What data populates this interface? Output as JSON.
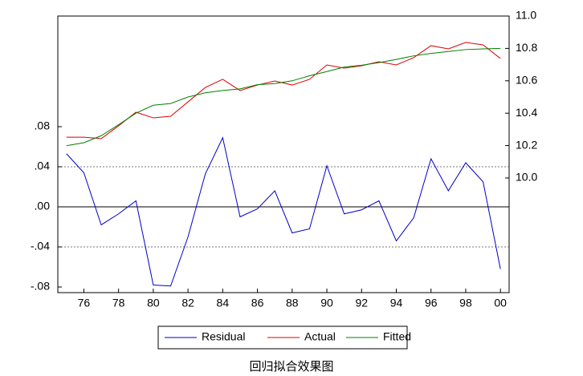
{
  "chart_data": {
    "type": "line",
    "caption": "回归拟合效果图",
    "x": [
      1975,
      1976,
      1977,
      1978,
      1979,
      1980,
      1981,
      1982,
      1983,
      1984,
      1985,
      1986,
      1987,
      1988,
      1989,
      1990,
      1991,
      1992,
      1993,
      1994,
      1995,
      1996,
      1997,
      1998,
      1999,
      2000
    ],
    "xlim": [
      1974.5,
      2000.5
    ],
    "xticks": [
      {
        "value": 1976,
        "label": "76"
      },
      {
        "value": 1978,
        "label": "78"
      },
      {
        "value": 1980,
        "label": "80"
      },
      {
        "value": 1982,
        "label": "82"
      },
      {
        "value": 1984,
        "label": "84"
      },
      {
        "value": 1986,
        "label": "86"
      },
      {
        "value": 1988,
        "label": "88"
      },
      {
        "value": 1990,
        "label": "90"
      },
      {
        "value": 1992,
        "label": "92"
      },
      {
        "value": 1994,
        "label": "94"
      },
      {
        "value": 1996,
        "label": "96"
      },
      {
        "value": 1998,
        "label": "98"
      },
      {
        "value": 2000,
        "label": "00"
      }
    ],
    "ylim": [
      -0.0856,
      0.1904
    ],
    "yticks": [
      {
        "value": -0.08,
        "label": "-.08"
      },
      {
        "value": -0.04,
        "label": "-.04"
      },
      {
        "value": 0,
        "label": ".00"
      },
      {
        "value": 0.04,
        "label": ".04"
      },
      {
        "value": 0.08,
        "label": ".08"
      }
    ],
    "y2lim": [
      9.292,
      11.0
    ],
    "y2ticks": [
      {
        "value": 10,
        "label": "10.0"
      },
      10.2,
      10.4,
      10.6,
      10.8,
      {
        "value": 11,
        "label": "11.0"
      }
    ],
    "hlines": [
      {
        "value": -0.04,
        "style": "dotted"
      },
      {
        "value": 0,
        "style": "solid"
      },
      {
        "value": 0.04,
        "style": "dotted"
      }
    ],
    "legend": "bottom",
    "series": [
      {
        "name": "Residual",
        "color": "#0000cc",
        "values": [
          0.053,
          0.034,
          -0.018,
          -0.007,
          0.006,
          -0.078,
          -0.079,
          -0.03,
          0.033,
          0.069,
          -0.01,
          -0.002,
          0.016,
          -0.026,
          -0.022,
          0.041,
          -0.007,
          -0.003,
          0.006,
          -0.034,
          -0.011,
          0.048,
          0.016,
          0.044,
          0.025,
          -0.062
        ]
      },
      {
        "name": "Actual",
        "color": "#dd0000",
        "axis": "y2",
        "values": [
          10.252,
          10.252,
          10.243,
          10.322,
          10.406,
          10.371,
          10.381,
          10.47,
          10.559,
          10.609,
          10.54,
          10.574,
          10.599,
          10.574,
          10.609,
          10.698,
          10.678,
          10.693,
          10.718,
          10.698,
          10.743,
          10.817,
          10.797,
          10.837,
          10.822,
          10.738
        ]
      },
      {
        "name": "Fitted",
        "color": "#008000",
        "axis": "y2",
        "values": [
          10.199,
          10.218,
          10.261,
          10.329,
          10.4,
          10.449,
          10.46,
          10.5,
          10.526,
          10.54,
          10.55,
          10.576,
          10.583,
          10.6,
          10.631,
          10.657,
          10.685,
          10.696,
          10.712,
          10.732,
          10.754,
          10.769,
          10.781,
          10.793,
          10.797,
          10.8
        ]
      }
    ]
  }
}
